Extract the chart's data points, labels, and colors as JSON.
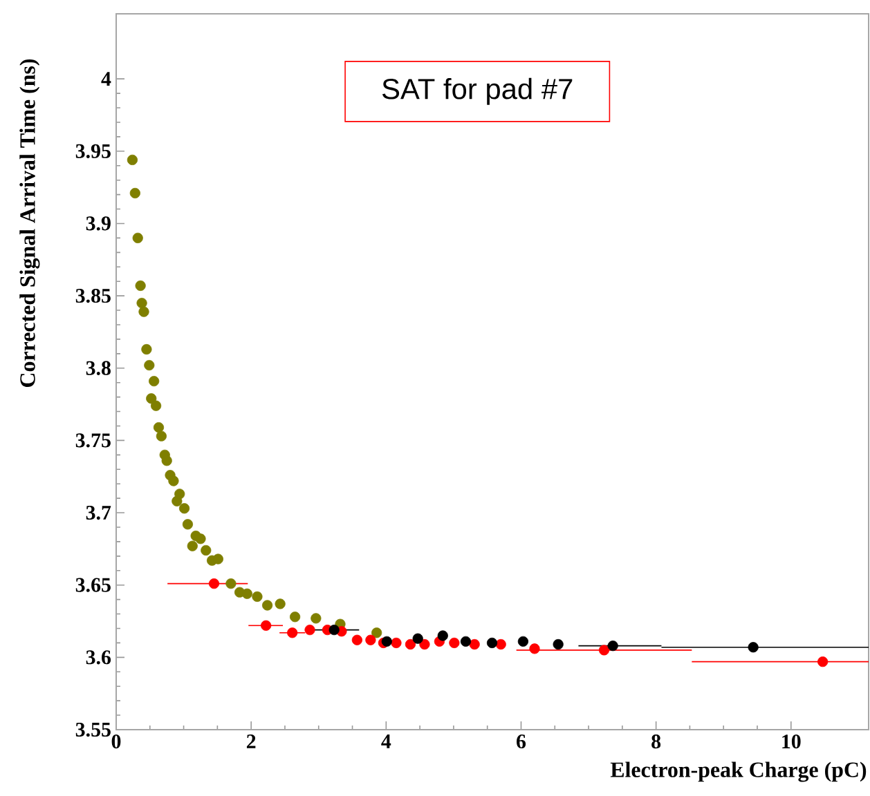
{
  "chart_data": {
    "type": "scatter",
    "title": "SAT for pad #7",
    "xlabel": "Electron-peak Charge (pC)",
    "ylabel": "Corrected Signal Arrival Time (ns)",
    "xlim": [
      0,
      11.15
    ],
    "ylim": [
      3.55,
      4.045
    ],
    "xticks": [
      0,
      2,
      4,
      6,
      8,
      10
    ],
    "yticks": [
      3.55,
      3.6,
      3.65,
      3.7,
      3.75,
      3.8,
      3.85,
      3.9,
      3.95,
      4
    ],
    "series": [
      {
        "color": "#7f7f00",
        "x": [
          0.24,
          0.28,
          0.32,
          0.36,
          0.38,
          0.41,
          0.45,
          0.49,
          0.52,
          0.56,
          0.59,
          0.63,
          0.67,
          0.72,
          0.75,
          0.8,
          0.85,
          0.9,
          0.94,
          1.01,
          1.06,
          1.13,
          1.18,
          1.25,
          1.33,
          1.42,
          1.51,
          1.7,
          1.83,
          1.94,
          2.09,
          2.24,
          2.43,
          2.65,
          2.96,
          3.32,
          3.86
        ],
        "values": [
          3.944,
          3.921,
          3.89,
          3.857,
          3.845,
          3.839,
          3.813,
          3.802,
          3.779,
          3.791,
          3.774,
          3.759,
          3.753,
          3.74,
          3.736,
          3.726,
          3.722,
          3.708,
          3.713,
          3.703,
          3.692,
          3.677,
          3.684,
          3.682,
          3.674,
          3.667,
          3.668,
          3.651,
          3.645,
          3.644,
          3.642,
          3.636,
          3.637,
          3.628,
          3.627,
          3.623,
          3.617
        ]
      },
      {
        "color": "#ff0000",
        "x": [
          1.45,
          2.22,
          2.61,
          2.87,
          3.13,
          3.34,
          3.57,
          3.77,
          3.96,
          4.15,
          4.36,
          4.57,
          4.79,
          5.01,
          5.31,
          5.7,
          6.2,
          7.23,
          10.47
        ],
        "values": [
          3.651,
          3.622,
          3.617,
          3.619,
          3.619,
          3.618,
          3.612,
          3.612,
          3.61,
          3.61,
          3.609,
          3.609,
          3.611,
          3.61,
          3.609,
          3.609,
          3.606,
          3.605,
          3.597
        ],
        "xerrors": [
          [
            0.76,
            1.95
          ],
          [
            1.96,
            2.47
          ],
          [
            2.42,
            2.8
          ],
          null,
          null,
          null,
          null,
          null,
          null,
          null,
          null,
          null,
          null,
          null,
          null,
          null,
          null,
          [
            5.93,
            8.53
          ],
          [
            8.53,
            11.15
          ]
        ]
      },
      {
        "color": "#000000",
        "x": [
          3.23,
          4.01,
          4.47,
          4.84,
          5.18,
          5.57,
          6.03,
          6.55,
          7.36,
          9.44
        ],
        "values": [
          3.619,
          3.611,
          3.613,
          3.615,
          3.611,
          3.61,
          3.611,
          3.609,
          3.608,
          3.607
        ],
        "xerrors": [
          [
            2.85,
            3.6
          ],
          null,
          null,
          null,
          null,
          null,
          null,
          null,
          [
            6.85,
            8.08
          ],
          [
            8.08,
            11.15
          ]
        ]
      }
    ]
  }
}
